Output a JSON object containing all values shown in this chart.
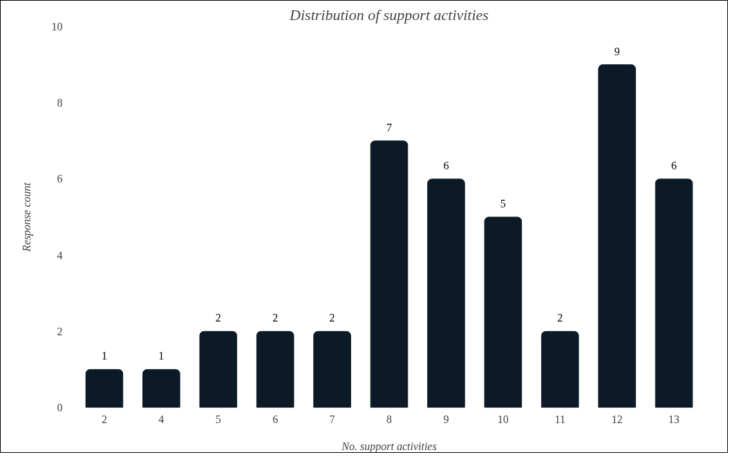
{
  "chart_data": {
    "type": "bar",
    "title": "Distribution of support activities",
    "xlabel": "No. support activities",
    "ylabel": "Response count",
    "categories": [
      "2",
      "4",
      "5",
      "6",
      "7",
      "8",
      "9",
      "10",
      "11",
      "12",
      "13"
    ],
    "values": [
      1,
      1,
      2,
      2,
      2,
      7,
      6,
      5,
      2,
      9,
      6
    ],
    "color": "#0b1a26",
    "ylim": [
      0,
      10
    ],
    "yticks": [
      0,
      2,
      4,
      6,
      8,
      10
    ],
    "grid": false,
    "data_labels": true
  }
}
